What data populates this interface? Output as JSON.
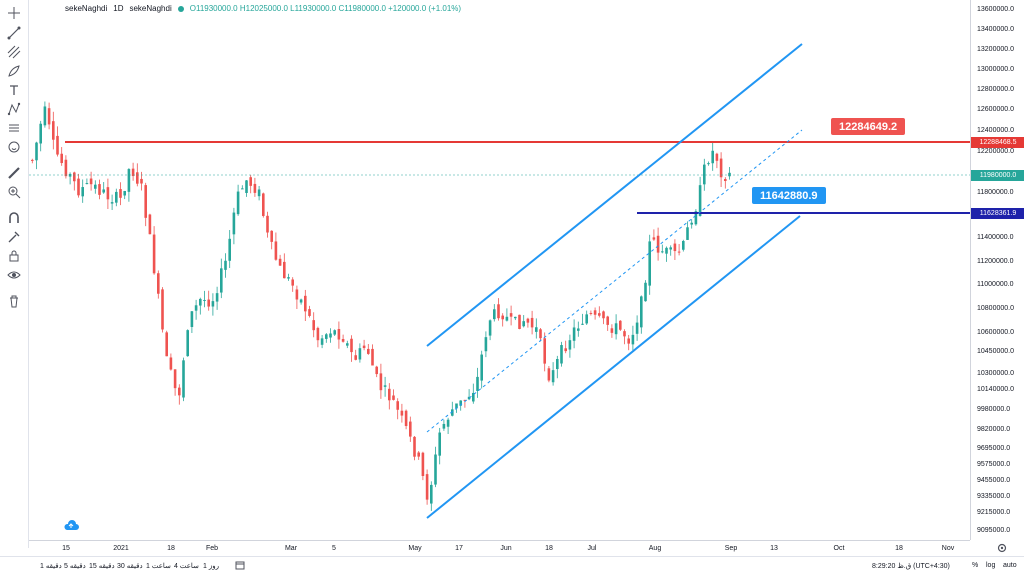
{
  "legend": {
    "symbol": "sekeNaghdi",
    "interval": "1D",
    "exchange": "sekeNaghdi",
    "ohlc": "O11930000.0  H12025000.0  L11930000.0  C11980000.0  +120000.0 (+1.01%)"
  },
  "toolbar": {
    "tools": [
      "crosshair-icon",
      "trend-line-icon",
      "pitchfork-icon",
      "brush-icon",
      "text-icon",
      "pattern-icon",
      "measure-icon",
      "emoji-icon",
      "ruler-icon",
      "zoom-icon",
      "magnet-icon",
      "lock-drawings-icon",
      "lock-icon",
      "eye-icon",
      "trash-icon"
    ]
  },
  "price_axis": {
    "labels": [
      "13600000.0",
      "13400000.0",
      "13200000.0",
      "13000000.0",
      "12800000.0",
      "12600000.0",
      "12400000.0",
      "12200000.0",
      "11800000.0",
      "11400000.0",
      "11200000.0",
      "11000000.0",
      "10800000.0",
      "10600000.0",
      "10450000.0",
      "10300000.0",
      "10140000.0",
      "9980000.0",
      "9820000.0",
      "9695000.0",
      "9575000.0",
      "9455000.0",
      "9335000.0",
      "9215000.0",
      "9095000.0"
    ],
    "tag_resistance": "12288468.5",
    "tag_last": "11980000.0",
    "tag_support": "11628361.9"
  },
  "time_axis": {
    "labels": [
      "15",
      "2021",
      "18",
      "Feb",
      "Mar",
      "5",
      "May",
      "17",
      "Jun",
      "18",
      "Jul",
      "Aug",
      "Sep",
      "13",
      "Oct",
      "18",
      "Nov"
    ]
  },
  "callouts": {
    "resistance": "12284649.2",
    "support": "11642880.9"
  },
  "bottom_bar": {
    "ranges": [
      "1 دقیقه",
      "5 دقیقه",
      "15 دقیقه",
      "30 دقیقه",
      "1 ساعت",
      "4 ساعت",
      "1 روز"
    ],
    "clock": "8:29:20 ق.ظ (UTC+4:30)",
    "percent": "%",
    "log": "log",
    "auto": "auto"
  },
  "colors": {
    "up": "#26a69a",
    "down": "#ef5350",
    "channel": "#2196f3",
    "resistance": "#e53935",
    "support": "#1e22aa",
    "last": "#26a69a"
  }
}
